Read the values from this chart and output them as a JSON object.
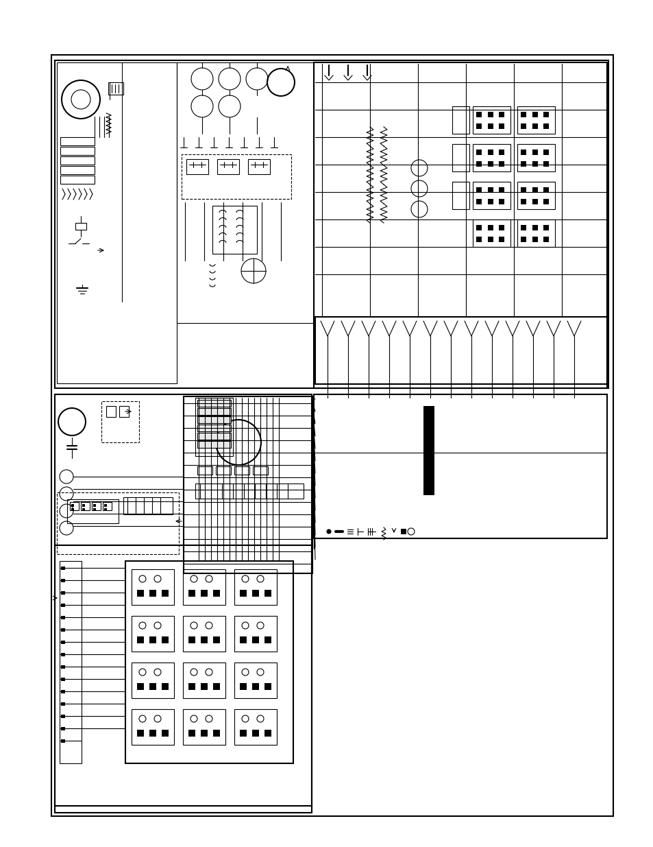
{
  "background_color": "#ffffff",
  "line_color": "#000000",
  "fig_width": 9.54,
  "fig_height": 12.35,
  "dpi": 100
}
